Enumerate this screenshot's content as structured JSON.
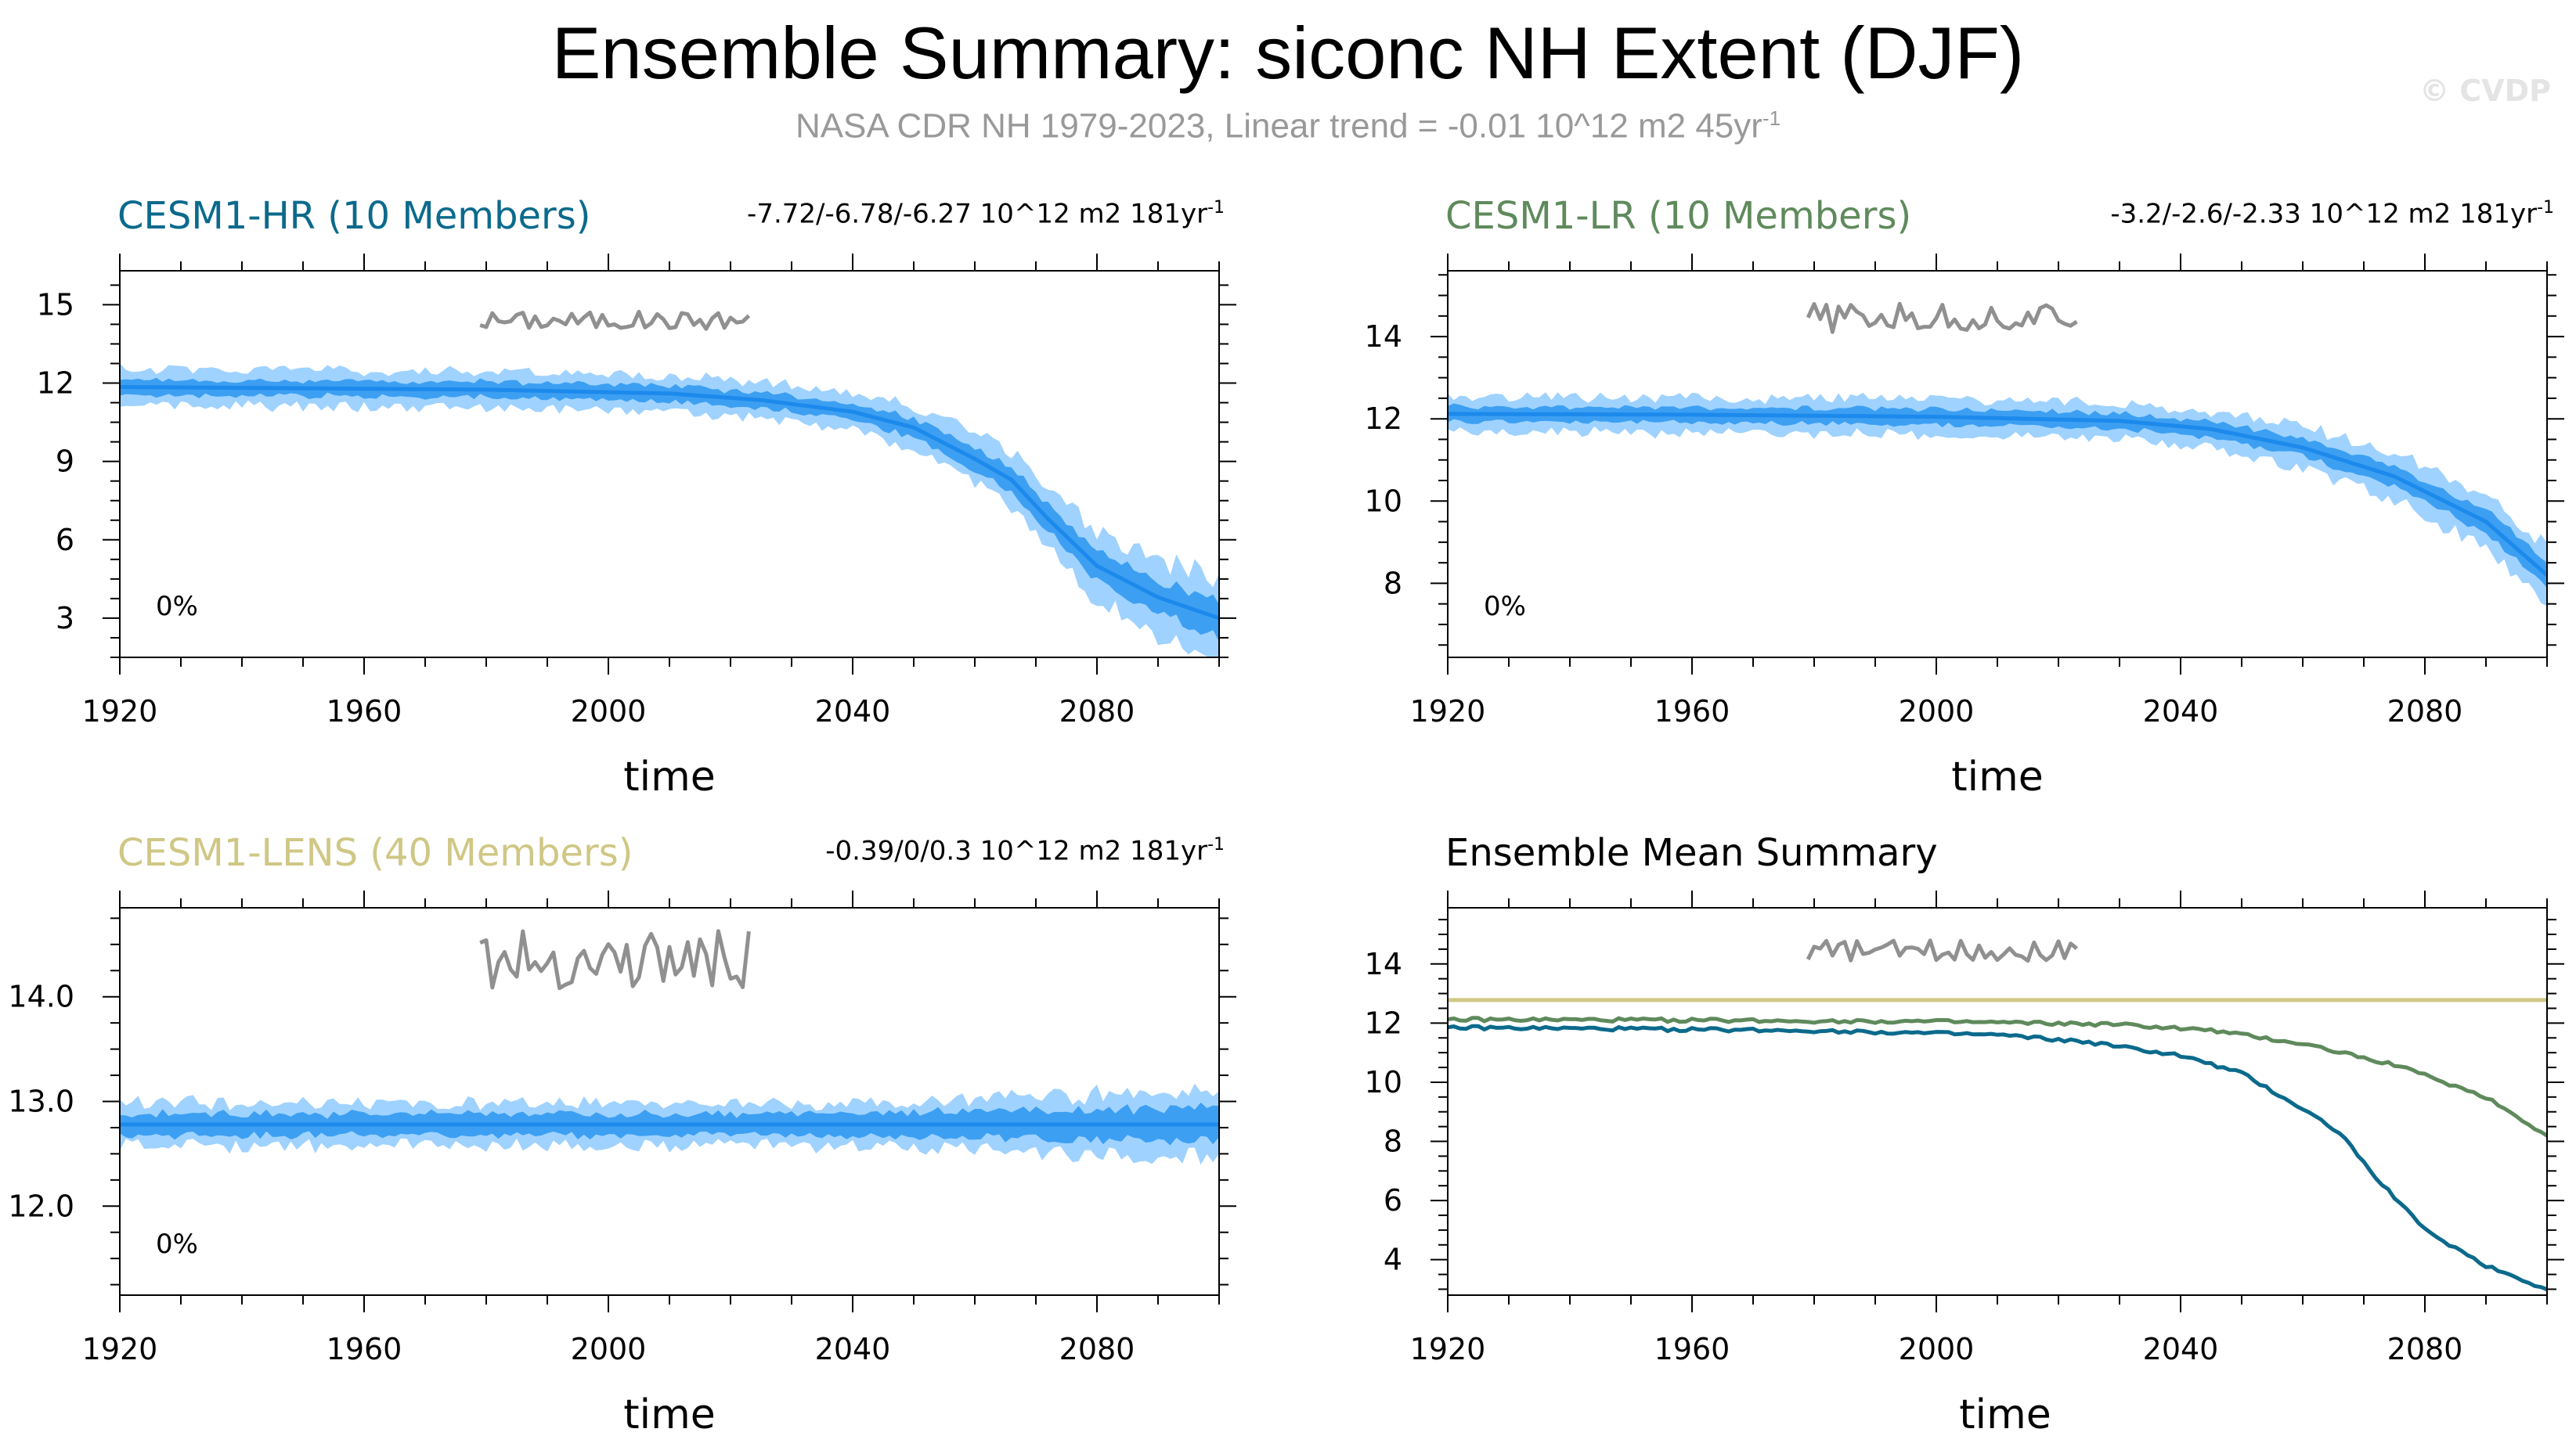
{
  "header": {
    "title": "Ensemble Summary: siconc NH Extent (DJF)",
    "subtitle_main": "NASA CDR NH 1979-2023, Linear trend = -0.01 10^12 m2 45yr",
    "subtitle_exp": "-1",
    "watermark": "© CVDP"
  },
  "colors": {
    "hr": "#0b6a8c",
    "lr": "#5f8a5c",
    "lens": "#cfc784",
    "band_outer": "#9fd2ff",
    "band_inner": "#3d9ff2",
    "mean_line": "#1c89ec",
    "obs": "#909090"
  },
  "chart_data": [
    {
      "type": "area",
      "id": "hr",
      "title": "CESM1-HR (10 Members)",
      "stat_text": "-7.72/-6.78/-6.27 10^12 m2 181yr",
      "stat_exp": "-1",
      "percent_label": "0%",
      "xlabel": "time",
      "xlim": [
        1920,
        2100
      ],
      "xticks": [
        1920,
        1960,
        2000,
        2040,
        2080
      ],
      "ylim": [
        1.5,
        16.3
      ],
      "yticks": [
        3,
        6,
        9,
        12,
        15
      ],
      "ytick_labels": [
        "3",
        "6",
        "9",
        "12",
        "15"
      ],
      "mean_shape": [
        [
          1920,
          11.85
        ],
        [
          1950,
          11.8
        ],
        [
          1980,
          11.75
        ],
        [
          2010,
          11.6
        ],
        [
          2025,
          11.35
        ],
        [
          2040,
          10.9
        ],
        [
          2050,
          10.3
        ],
        [
          2060,
          9.1
        ],
        [
          2066,
          8.3
        ],
        [
          2072,
          6.8
        ],
        [
          2080,
          5.0
        ],
        [
          2090,
          3.8
        ],
        [
          2100,
          3.0
        ]
      ],
      "spread_inner": 0.35,
      "spread_outer": 0.8,
      "spread_growth": 1.3,
      "obs": {
        "start": 1979,
        "end": 2023,
        "base": 14.4,
        "amp": 0.35
      }
    },
    {
      "type": "area",
      "id": "lr",
      "title": "CESM1-LR (10 Members)",
      "stat_text": "-3.2/-2.6/-2.33 10^12 m2 181yr",
      "stat_exp": "-1",
      "percent_label": "0%",
      "xlabel": "time",
      "xlim": [
        1920,
        2100
      ],
      "xticks": [
        1920,
        1960,
        2000,
        2040,
        2080
      ],
      "ylim": [
        6.2,
        15.6
      ],
      "yticks": [
        8,
        10,
        12,
        14
      ],
      "ytick_labels": [
        "8",
        "10",
        "12",
        "14"
      ],
      "mean_shape": [
        [
          1920,
          12.12
        ],
        [
          1960,
          12.1
        ],
        [
          2000,
          12.05
        ],
        [
          2030,
          11.95
        ],
        [
          2045,
          11.75
        ],
        [
          2060,
          11.3
        ],
        [
          2075,
          10.6
        ],
        [
          2090,
          9.5
        ],
        [
          2100,
          8.2
        ]
      ],
      "spread_inner": 0.22,
      "spread_outer": 0.5,
      "spread_growth": 0.6,
      "obs": {
        "start": 1979,
        "end": 2023,
        "base": 14.45,
        "amp": 0.35
      }
    },
    {
      "type": "area",
      "id": "lens",
      "title": "CESM1-LENS (40 Members)",
      "stat_text": "-0.39/0/0.3 10^12 m2 181yr",
      "stat_exp": "-1",
      "percent_label": "0%",
      "xlabel": "time",
      "xlim": [
        1920,
        2100
      ],
      "xticks": [
        1920,
        1960,
        2000,
        2040,
        2080
      ],
      "ylim": [
        11.15,
        14.85
      ],
      "yticks": [
        12.0,
        13.0,
        14.0
      ],
      "ytick_labels": [
        "12.0",
        "13.0",
        "14.0"
      ],
      "mean_shape": [
        [
          1920,
          12.78
        ],
        [
          2100,
          12.78
        ]
      ],
      "spread_inner": 0.12,
      "spread_outer": 0.24,
      "spread_growth": 0.6,
      "obs": {
        "start": 1979,
        "end": 2023,
        "base": 14.35,
        "amp": 0.28
      }
    },
    {
      "type": "line",
      "id": "summary",
      "title": "Ensemble Mean Summary",
      "xlabel": "",
      "xlim": [
        1920,
        2100
      ],
      "xticks": [
        1920,
        1960,
        2000,
        2040,
        2080
      ],
      "ylim": [
        2.8,
        15.9
      ],
      "yticks": [
        4,
        6,
        8,
        10,
        12,
        14
      ],
      "ytick_labels": [
        "4",
        "6",
        "8",
        "10",
        "12",
        "14"
      ],
      "series": [
        {
          "name": "CESM1-LENS",
          "color_key": "lens",
          "points": [
            [
              1920,
              12.78
            ],
            [
              2100,
              12.78
            ]
          ]
        },
        {
          "name": "CESM1-LR",
          "color_key": "lr",
          "points": [
            [
              1920,
              12.12
            ],
            [
              1960,
              12.1
            ],
            [
              2000,
              12.05
            ],
            [
              2030,
              11.95
            ],
            [
              2045,
              11.75
            ],
            [
              2060,
              11.3
            ],
            [
              2075,
              10.6
            ],
            [
              2090,
              9.5
            ],
            [
              2100,
              8.2
            ]
          ]
        },
        {
          "name": "CESM1-HR",
          "color_key": "hr",
          "points": [
            [
              1920,
              11.85
            ],
            [
              1950,
              11.8
            ],
            [
              1980,
              11.75
            ],
            [
              2010,
              11.6
            ],
            [
              2025,
              11.35
            ],
            [
              2040,
              10.9
            ],
            [
              2050,
              10.3
            ],
            [
              2060,
              9.1
            ],
            [
              2066,
              8.3
            ],
            [
              2072,
              6.8
            ],
            [
              2080,
              5.0
            ],
            [
              2090,
              3.8
            ],
            [
              2100,
              3.0
            ]
          ]
        }
      ],
      "obs": {
        "start": 1979,
        "end": 2023,
        "base": 14.45,
        "amp": 0.35
      }
    }
  ]
}
